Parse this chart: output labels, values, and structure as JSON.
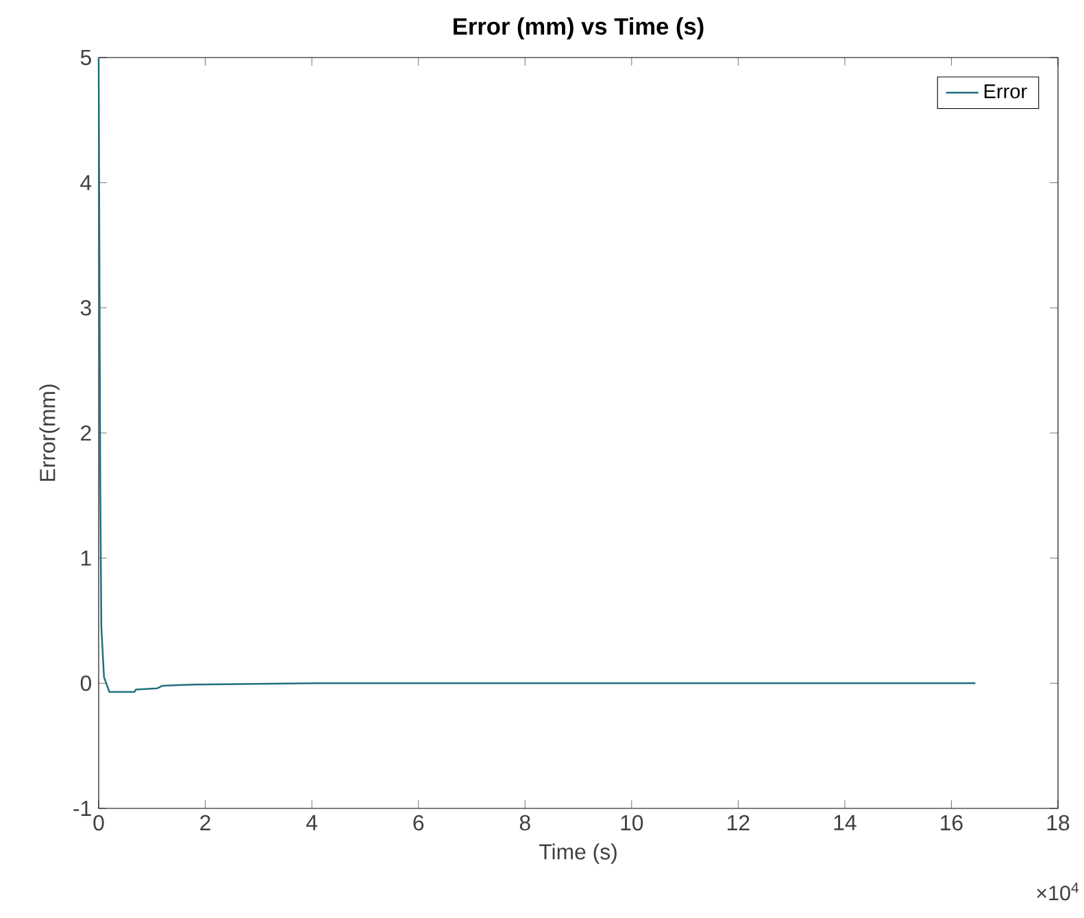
{
  "chart_data": {
    "type": "line",
    "title": "Error (mm) vs Time (s)",
    "xlabel": "Time (s)",
    "ylabel": "Error(mm)",
    "x": [
      0,
      0.03,
      0.05,
      0.1,
      0.2,
      0.67,
      0.7,
      1.1,
      1.2,
      1.8,
      4.1,
      16.45
    ],
    "series": [
      {
        "name": "Error",
        "color": "#1f6f7f",
        "values": [
          5,
          1.6,
          0.45,
          0.05,
          -0.07,
          -0.07,
          -0.05,
          -0.04,
          -0.02,
          -0.01,
          0,
          0
        ]
      }
    ],
    "xlim": [
      0,
      18
    ],
    "ylim": [
      -1,
      5
    ],
    "xticks": [
      0,
      2,
      4,
      6,
      8,
      10,
      12,
      14,
      16,
      18
    ],
    "yticks": [
      -1,
      0,
      1,
      2,
      3,
      4,
      5
    ],
    "annotations": [
      "×10$^{4}$"
    ],
    "legend": "top right",
    "grid": false,
    "line_style": "solid",
    "marker": "none"
  }
}
